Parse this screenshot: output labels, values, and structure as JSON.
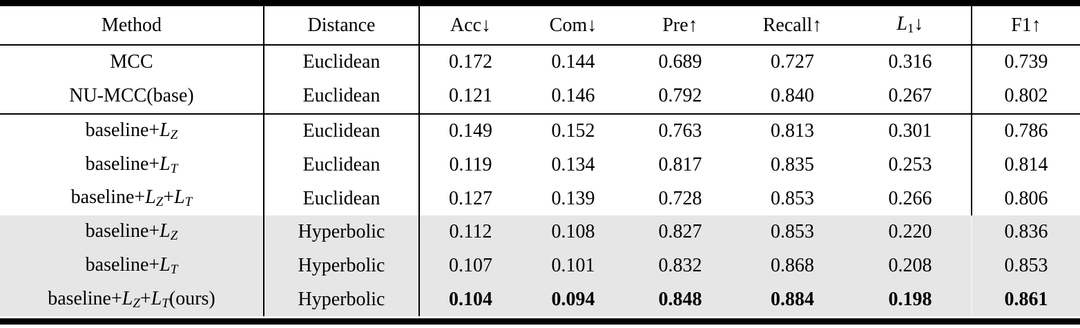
{
  "colors": {
    "text": "#000000",
    "rule": "#000000",
    "shaded_row_bg": "#e6e6e6",
    "shaded_divider": "#f0f0f0",
    "background": "#ffffff"
  },
  "table": {
    "columns": [
      {
        "id": "method",
        "segments": [
          {
            "text": "Method"
          }
        ]
      },
      {
        "id": "distance",
        "segments": [
          {
            "text": "Distance"
          }
        ]
      },
      {
        "id": "acc",
        "segments": [
          {
            "text": "Acc"
          },
          {
            "text": "↓"
          }
        ]
      },
      {
        "id": "com",
        "segments": [
          {
            "text": "Com"
          },
          {
            "text": "↓"
          }
        ]
      },
      {
        "id": "pre",
        "segments": [
          {
            "text": "Pre"
          },
          {
            "text": "↑"
          }
        ]
      },
      {
        "id": "recall",
        "segments": [
          {
            "text": "Recall"
          },
          {
            "text": "↑"
          }
        ]
      },
      {
        "id": "l1",
        "segments": [
          {
            "text": "L",
            "cls": "i"
          },
          {
            "text": "1",
            "cls": "sub"
          },
          {
            "text": "↓"
          }
        ]
      },
      {
        "id": "f1",
        "segments": [
          {
            "text": "F1"
          },
          {
            "text": "↑"
          }
        ]
      }
    ],
    "rows": [
      {
        "method": [
          {
            "text": "MCC"
          }
        ],
        "distance": "Euclidean",
        "values": [
          "0.172",
          "0.144",
          "0.689",
          "0.727",
          "0.316",
          "0.739"
        ],
        "shaded": false,
        "bold_values": false,
        "rule_after": false
      },
      {
        "method": [
          {
            "text": "NU-MCC(base)"
          }
        ],
        "distance": "Euclidean",
        "values": [
          "0.121",
          "0.146",
          "0.792",
          "0.840",
          "0.267",
          "0.802"
        ],
        "shaded": false,
        "bold_values": false,
        "rule_after": true
      },
      {
        "method": [
          {
            "text": "baseline+"
          },
          {
            "text": "L",
            "cls": "i"
          },
          {
            "text": "Z",
            "cls": "subi"
          }
        ],
        "distance": "Euclidean",
        "values": [
          "0.149",
          "0.152",
          "0.763",
          "0.813",
          "0.301",
          "0.786"
        ],
        "shaded": false,
        "bold_values": false,
        "rule_after": false
      },
      {
        "method": [
          {
            "text": "baseline+"
          },
          {
            "text": "L",
            "cls": "i"
          },
          {
            "text": "T",
            "cls": "subi"
          }
        ],
        "distance": "Euclidean",
        "values": [
          "0.119",
          "0.134",
          "0.817",
          "0.835",
          "0.253",
          "0.814"
        ],
        "shaded": false,
        "bold_values": false,
        "rule_after": false
      },
      {
        "method": [
          {
            "text": "baseline+"
          },
          {
            "text": "L",
            "cls": "i"
          },
          {
            "text": "Z",
            "cls": "subi"
          },
          {
            "text": "+"
          },
          {
            "text": "L",
            "cls": "i"
          },
          {
            "text": "T",
            "cls": "subi"
          }
        ],
        "distance": "Euclidean",
        "values": [
          "0.127",
          "0.139",
          "0.728",
          "0.853",
          "0.266",
          "0.806"
        ],
        "shaded": false,
        "bold_values": false,
        "rule_after": false
      },
      {
        "method": [
          {
            "text": "baseline+"
          },
          {
            "text": "L",
            "cls": "i"
          },
          {
            "text": "Z",
            "cls": "subi"
          }
        ],
        "distance": "Hyperbolic",
        "values": [
          "0.112",
          "0.108",
          "0.827",
          "0.853",
          "0.220",
          "0.836"
        ],
        "shaded": true,
        "bold_values": false,
        "rule_after": false
      },
      {
        "method": [
          {
            "text": "baseline+"
          },
          {
            "text": "L",
            "cls": "i"
          },
          {
            "text": "T",
            "cls": "subi"
          }
        ],
        "distance": "Hyperbolic",
        "values": [
          "0.107",
          "0.101",
          "0.832",
          "0.868",
          "0.208",
          "0.853"
        ],
        "shaded": true,
        "bold_values": false,
        "rule_after": false
      },
      {
        "method": [
          {
            "text": "baseline+"
          },
          {
            "text": "L",
            "cls": "i"
          },
          {
            "text": "Z",
            "cls": "subi"
          },
          {
            "text": "+"
          },
          {
            "text": "L",
            "cls": "i"
          },
          {
            "text": "T",
            "cls": "subi"
          },
          {
            "text": "(ours)"
          }
        ],
        "distance": "Hyperbolic",
        "values": [
          "0.104",
          "0.094",
          "0.848",
          "0.884",
          "0.198",
          "0.861"
        ],
        "shaded": true,
        "bold_values": true,
        "rule_after": false
      }
    ]
  },
  "chart_data": {
    "type": "table",
    "columns": [
      "Method",
      "Distance",
      "Acc↓",
      "Com↓",
      "Pre↑",
      "Recall↑",
      "L1↓",
      "F1↑"
    ],
    "rows": [
      [
        "MCC",
        "Euclidean",
        "0.172",
        "0.144",
        "0.689",
        "0.727",
        "0.316",
        "0.739"
      ],
      [
        "NU-MCC(base)",
        "Euclidean",
        "0.121",
        "0.146",
        "0.792",
        "0.840",
        "0.267",
        "0.802"
      ],
      [
        "baseline+L_Z",
        "Euclidean",
        "0.149",
        "0.152",
        "0.763",
        "0.813",
        "0.301",
        "0.786"
      ],
      [
        "baseline+L_T",
        "Euclidean",
        "0.119",
        "0.134",
        "0.817",
        "0.835",
        "0.253",
        "0.814"
      ],
      [
        "baseline+L_Z+L_T",
        "Euclidean",
        "0.127",
        "0.139",
        "0.728",
        "0.853",
        "0.266",
        "0.806"
      ],
      [
        "baseline+L_Z",
        "Hyperbolic",
        "0.112",
        "0.108",
        "0.827",
        "0.853",
        "0.220",
        "0.836"
      ],
      [
        "baseline+L_T",
        "Hyperbolic",
        "0.107",
        "0.101",
        "0.832",
        "0.868",
        "0.208",
        "0.853"
      ],
      [
        "baseline+L_Z+L_T(ours)",
        "Hyperbolic",
        "0.104",
        "0.094",
        "0.848",
        "0.884",
        "0.198",
        "0.861"
      ]
    ],
    "shaded_row_indices": [
      5,
      6,
      7
    ],
    "bold_row_index": 7
  }
}
